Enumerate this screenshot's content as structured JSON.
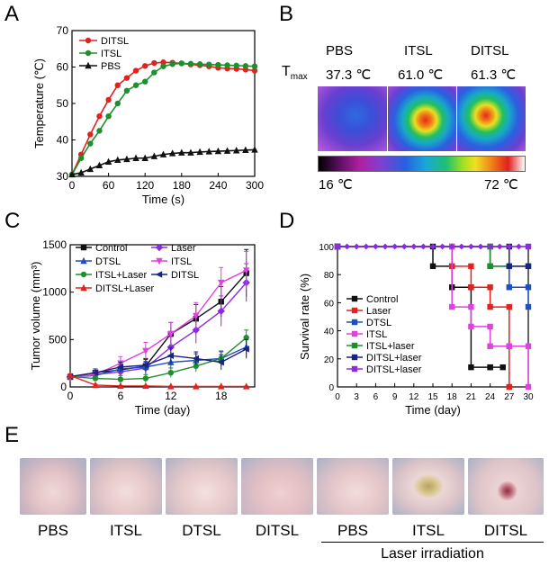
{
  "panels": {
    "a": "A",
    "b": "B",
    "c": "C",
    "d": "D",
    "e": "E"
  },
  "chart_data": [
    {
      "id": "A",
      "type": "line",
      "xlabel": "Time (s)",
      "ylabel": "Temperature (℃)",
      "xlim": [
        0,
        300
      ],
      "ylim": [
        30,
        70
      ],
      "xticks": [
        0,
        60,
        120,
        180,
        240,
        300
      ],
      "yticks": [
        30,
        40,
        50,
        60,
        70
      ],
      "legend": [
        "DITSL",
        "ITSL",
        "PBS"
      ],
      "series": [
        {
          "name": "DITSL",
          "color": "#e0231f",
          "marker": "circle",
          "x": [
            0,
            15,
            30,
            45,
            60,
            75,
            90,
            105,
            120,
            135,
            150,
            165,
            180,
            195,
            210,
            225,
            240,
            255,
            270,
            285,
            300
          ],
          "y": [
            30.5,
            36,
            41.5,
            46.5,
            51,
            55,
            57,
            59,
            60.3,
            61.1,
            61.3,
            61.2,
            61.0,
            60.7,
            60.5,
            60.2,
            59.8,
            59.6,
            59.5,
            59.3,
            59.0
          ]
        },
        {
          "name": "ITSL",
          "color": "#1e8f2c",
          "marker": "circle",
          "x": [
            0,
            15,
            30,
            45,
            60,
            75,
            90,
            105,
            120,
            135,
            150,
            165,
            180,
            195,
            210,
            225,
            240,
            255,
            270,
            285,
            300
          ],
          "y": [
            30.5,
            35,
            39,
            42.5,
            46.5,
            50,
            53.5,
            55,
            56,
            58.5,
            60.2,
            60.8,
            61.0,
            60.9,
            60.8,
            60.7,
            60.6,
            60.5,
            60.4,
            60.3,
            60.2
          ]
        },
        {
          "name": "PBS",
          "color": "#111111",
          "marker": "triangle",
          "x": [
            0,
            15,
            30,
            45,
            60,
            75,
            90,
            105,
            120,
            135,
            150,
            165,
            180,
            195,
            210,
            225,
            240,
            255,
            270,
            285,
            300
          ],
          "y": [
            30.5,
            31,
            32,
            33,
            34,
            34.5,
            34.7,
            35,
            35,
            35.5,
            36,
            36.3,
            36.5,
            36.5,
            36.7,
            36.8,
            36.9,
            37.0,
            37.1,
            37.2,
            37.3
          ]
        }
      ]
    },
    {
      "id": "C",
      "type": "line",
      "xlabel": "Time (day)",
      "ylabel": "Tumor volume (mm³)",
      "xlim": [
        0,
        22
      ],
      "ylim": [
        0,
        1500
      ],
      "xticks": [
        0,
        6,
        12,
        18
      ],
      "yticks": [
        0,
        500,
        1000,
        1500
      ],
      "legend": [
        "Control",
        "Laser",
        "DTSL",
        "ITSL",
        "ITSL+Laser",
        "DITSL",
        "DITSL+Laser"
      ],
      "series": [
        {
          "name": "Control",
          "color": "#111111",
          "marker": "square",
          "x": [
            0,
            3,
            6,
            9,
            12,
            15,
            18,
            21
          ],
          "y": [
            105,
            150,
            180,
            220,
            560,
            720,
            900,
            1200
          ],
          "err": [
            15,
            40,
            60,
            80,
            120,
            150,
            160,
            250
          ]
        },
        {
          "name": "Laser",
          "color": "#8a2be2",
          "marker": "diamond",
          "x": [
            0,
            3,
            6,
            9,
            12,
            15,
            18,
            21
          ],
          "y": [
            100,
            130,
            160,
            200,
            420,
            600,
            800,
            1100
          ],
          "err": [
            15,
            30,
            50,
            70,
            110,
            140,
            160,
            200
          ]
        },
        {
          "name": "DTSL",
          "color": "#1f4fbf",
          "marker": "triangle",
          "x": [
            0,
            3,
            6,
            9,
            12,
            15,
            18,
            21
          ],
          "y": [
            105,
            120,
            190,
            210,
            260,
            280,
            300,
            420
          ],
          "err": [
            15,
            25,
            40,
            50,
            60,
            70,
            80,
            100
          ]
        },
        {
          "name": "ITSL",
          "color": "#e040e0",
          "marker": "triangle-down",
          "x": [
            0,
            3,
            6,
            9,
            12,
            15,
            18,
            21
          ],
          "y": [
            100,
            130,
            250,
            380,
            560,
            750,
            1100,
            1230
          ],
          "err": [
            15,
            40,
            70,
            90,
            120,
            140,
            160,
            200
          ]
        },
        {
          "name": "ITSL+Laser",
          "color": "#1e8f2c",
          "marker": "circle",
          "x": [
            0,
            3,
            6,
            9,
            12,
            15,
            18,
            21
          ],
          "y": [
            110,
            90,
            80,
            90,
            150,
            220,
            300,
            520
          ],
          "err": [
            20,
            30,
            40,
            40,
            50,
            60,
            70,
            80
          ]
        },
        {
          "name": "DITSL",
          "color": "#1a237e",
          "marker": "triangle-left",
          "x": [
            0,
            3,
            6,
            9,
            12,
            15,
            18,
            21
          ],
          "y": [
            110,
            150,
            210,
            230,
            330,
            300,
            260,
            400
          ],
          "err": [
            20,
            40,
            50,
            60,
            80,
            70,
            80,
            100
          ]
        },
        {
          "name": "DITSL+Laser",
          "color": "#e0231f",
          "marker": "triangle",
          "x": [
            0,
            3,
            6,
            9,
            12,
            15,
            18,
            21
          ],
          "y": [
            120,
            20,
            10,
            10,
            5,
            5,
            5,
            5
          ],
          "err": [
            20,
            10,
            5,
            5,
            3,
            3,
            3,
            3
          ]
        }
      ]
    },
    {
      "id": "D",
      "type": "line",
      "xlabel": "Time (day)",
      "ylabel": "Survival rate (%)",
      "xlim": [
        0,
        30
      ],
      "ylim": [
        0,
        100
      ],
      "xticks": [
        0,
        3,
        6,
        9,
        12,
        15,
        18,
        21,
        24,
        27,
        30
      ],
      "yticks": [
        0,
        20,
        40,
        60,
        80,
        100
      ],
      "legend": [
        "Control",
        "Laser",
        "DTSL",
        "ITSL",
        "ITSL+laser",
        "DITSL+laser",
        "DITSL+laser"
      ],
      "series": [
        {
          "name": "Control",
          "color": "#111111",
          "x": [
            0,
            15,
            15,
            18,
            18,
            21,
            21,
            24,
            24,
            26
          ],
          "y": [
            100,
            100,
            86,
            86,
            71,
            71,
            14,
            14,
            14,
            14
          ]
        },
        {
          "name": "Laser",
          "color": "#e0231f",
          "x": [
            0,
            18,
            18,
            21,
            21,
            24,
            24,
            27,
            27
          ],
          "y": [
            100,
            100,
            86,
            86,
            71,
            71,
            57,
            57,
            0
          ]
        },
        {
          "name": "DTSL",
          "color": "#1f4fbf",
          "x": [
            0,
            24,
            24,
            27,
            27,
            30,
            30
          ],
          "y": [
            100,
            100,
            86,
            86,
            71,
            71,
            57
          ]
        },
        {
          "name": "ITSL",
          "color": "#e040e0",
          "x": [
            0,
            18,
            18,
            21,
            21,
            24,
            24,
            27,
            27,
            30,
            30
          ],
          "y": [
            100,
            100,
            57,
            57,
            43,
            43,
            29,
            29,
            29,
            29,
            0
          ]
        },
        {
          "name": "ITSL+laser",
          "color": "#1e8f2c",
          "x": [
            0,
            24,
            24,
            30
          ],
          "y": [
            100,
            100,
            86,
            86
          ]
        },
        {
          "name": "DITSL+laser",
          "color": "#1a237e",
          "x": [
            0,
            27,
            27,
            30
          ],
          "y": [
            100,
            100,
            86,
            86
          ]
        },
        {
          "name": "DITSL+laser",
          "color": "#8a2be2",
          "x": [
            0,
            30
          ],
          "y": [
            100,
            100
          ]
        }
      ]
    }
  ],
  "thermal": {
    "tmax_label": "T",
    "tmax_sub": "max",
    "groups": [
      {
        "name": "PBS",
        "tmax": "37.3 ℃"
      },
      {
        "name": "ITSL",
        "tmax": "61.0 ℃"
      },
      {
        "name": "DITSL",
        "tmax": "61.3 ℃"
      }
    ],
    "scale_min": "16 ℃",
    "scale_max": "72 ℃"
  },
  "photos": {
    "labels": [
      "PBS",
      "ITSL",
      "DTSL",
      "DITSL",
      "PBS",
      "ITSL",
      "DITSL"
    ],
    "laser_label": "Laser irradiation"
  }
}
